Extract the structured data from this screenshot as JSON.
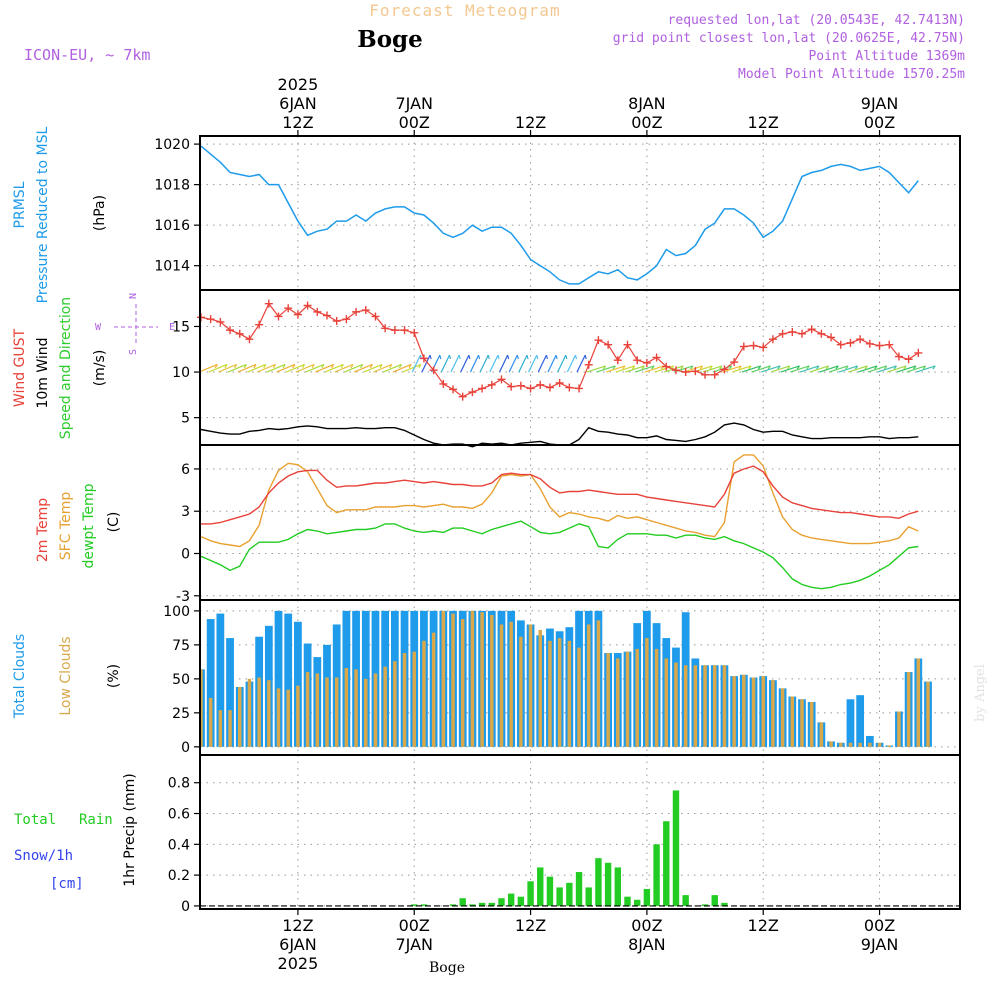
{
  "header": {
    "product": "Forecast Meteogram",
    "location": "Boge",
    "model": "ICON-EU, ~ 7km",
    "requested": "requested lon,lat (20.0543E, 42.7413N)",
    "grid_point": "grid point closest lon,lat (20.0625E, 42.75N)",
    "point_altitude": "Point Altitude 1369m",
    "model_altitude": "Model Point Altitude 1570.25m",
    "footer_location": "Boge",
    "watermark": "by Angel"
  },
  "colors": {
    "pressure": "#1e9bea",
    "gust": "#e8423a",
    "wind": "#000000",
    "dir_label": "#2ecc2e",
    "temp": "#e8423a",
    "sfc": "#e8a030",
    "dewpt": "#22cc22",
    "total_cloud": "#1e9bea",
    "low_cloud": "#d8a84a",
    "rain": "#22cc22",
    "snow": "#3344ee",
    "header_purple": "#b060e0",
    "header_orange": "#f3c890"
  },
  "chart_data": [
    {
      "id": "time_axis",
      "type": "line",
      "x_unit": "hours from 2025-01-06 00Z",
      "xlim": [
        1.9,
        80.3
      ],
      "ticks": [
        {
          "x": 12,
          "top": [
            "2025",
            "6JAN",
            "12Z"
          ],
          "bottom": [
            "12Z",
            "6JAN",
            "2025"
          ]
        },
        {
          "x": 24,
          "top": [
            "7JAN",
            "00Z"
          ],
          "bottom": [
            "00Z",
            "7JAN"
          ]
        },
        {
          "x": 36,
          "top": [
            "12Z"
          ],
          "bottom": [
            "12Z"
          ]
        },
        {
          "x": 48,
          "top": [
            "8JAN",
            "00Z"
          ],
          "bottom": [
            "00Z",
            "8JAN"
          ]
        },
        {
          "x": 60,
          "top": [
            "12Z"
          ],
          "bottom": [
            "12Z"
          ]
        },
        {
          "x": 72,
          "top": [
            "9JAN",
            "00Z"
          ],
          "bottom": [
            "00Z",
            "9JAN"
          ]
        }
      ]
    },
    {
      "id": "pressure",
      "type": "line",
      "title": "PRMSL Pressure Reduced to MSL",
      "label1": "PRMSL",
      "label2": "Pressure Reduced to MSL",
      "unit": "(hPa)",
      "ylim": [
        1012.8,
        1020.4
      ],
      "yticks": [
        1014,
        1016,
        1018,
        1020
      ],
      "x_start": 2,
      "x_step": 1,
      "values": [
        1019.9,
        1019.5,
        1019.1,
        1018.6,
        1018.5,
        1018.4,
        1018.5,
        1018.0,
        1018.0,
        1017.1,
        1016.2,
        1015.5,
        1015.7,
        1015.8,
        1016.2,
        1016.2,
        1016.5,
        1016.2,
        1016.6,
        1016.8,
        1016.9,
        1016.9,
        1016.6,
        1016.5,
        1016.1,
        1015.6,
        1015.4,
        1015.6,
        1016.0,
        1015.7,
        1015.9,
        1015.9,
        1015.6,
        1015.0,
        1014.3,
        1014.0,
        1013.7,
        1013.3,
        1013.1,
        1013.1,
        1013.4,
        1013.7,
        1013.6,
        1013.8,
        1013.4,
        1013.3,
        1013.6,
        1014.0,
        1014.8,
        1014.5,
        1014.6,
        1015.0,
        1015.8,
        1016.1,
        1016.8,
        1016.8,
        1016.5,
        1016.1,
        1015.4,
        1015.7,
        1016.2,
        1017.3,
        1018.4,
        1018.6,
        1018.7,
        1018.9,
        1019.0,
        1018.9,
        1018.7,
        1018.8,
        1018.9,
        1018.6,
        1018.1,
        1017.6,
        1018.2
      ]
    },
    {
      "id": "wind",
      "type": "line",
      "title": "Wind GUST / 10m Wind Speed and Direction",
      "label_gust": "Wind GUST",
      "label_wind": "10m Wind",
      "label_dir": "Speed and Direction",
      "unit": "(m/s)",
      "compass": {
        "n": "N",
        "s": "S",
        "w": "W",
        "e": "E"
      },
      "ylim": [
        2.0,
        19.0
      ],
      "yticks": [
        5,
        10,
        15
      ],
      "x_start": 2,
      "x_step": 1,
      "series": [
        {
          "name": "Wind GUST",
          "values": [
            16.0,
            15.8,
            15.5,
            14.6,
            14.2,
            13.6,
            15.2,
            17.5,
            16.1,
            17.0,
            16.3,
            17.3,
            16.6,
            16.2,
            15.6,
            15.8,
            16.6,
            16.8,
            16.1,
            14.8,
            14.6,
            14.6,
            14.3,
            11.5,
            10.2,
            8.7,
            8.1,
            7.3,
            7.8,
            8.2,
            8.6,
            9.2,
            8.4,
            8.5,
            8.2,
            8.6,
            8.3,
            8.8,
            8.3,
            8.2,
            10.8,
            13.5,
            13.0,
            11.3,
            13.0,
            11.3,
            11.0,
            11.6,
            10.6,
            10.2,
            10.0,
            10.1,
            9.7,
            9.7,
            10.3,
            11.1,
            12.8,
            12.9,
            12.7,
            13.6,
            14.2,
            14.4,
            14.2,
            14.7,
            14.2,
            13.8,
            13.0,
            13.2,
            13.6,
            13.1,
            12.9,
            13.0,
            11.7,
            11.4,
            12.1
          ]
        },
        {
          "name": "10m Wind",
          "values": [
            3.7,
            3.5,
            3.3,
            3.2,
            3.2,
            3.5,
            3.6,
            3.8,
            3.7,
            3.8,
            4.0,
            4.1,
            4.0,
            3.8,
            3.8,
            3.8,
            3.9,
            3.8,
            3.8,
            3.9,
            3.9,
            3.6,
            3.1,
            2.6,
            2.2,
            2.0,
            2.1,
            2.1,
            1.8,
            2.2,
            2.1,
            2.2,
            2.0,
            2.2,
            2.3,
            2.4,
            2.1,
            2.0,
            2.0,
            2.6,
            3.9,
            3.5,
            3.4,
            3.2,
            3.1,
            2.8,
            2.8,
            3.0,
            2.6,
            2.5,
            2.4,
            2.6,
            2.9,
            3.4,
            4.2,
            4.4,
            4.2,
            3.7,
            3.4,
            3.5,
            3.5,
            3.1,
            2.9,
            2.7,
            2.7,
            2.8,
            2.8,
            2.8,
            2.8,
            2.9,
            2.9,
            2.7,
            2.8,
            2.8,
            2.9
          ]
        }
      ]
    },
    {
      "id": "temperature",
      "type": "line",
      "title": "2m Temp / SFC Temp / dewpt Temp",
      "label_t2m": "2m Temp",
      "label_sfc": "SFC Temp",
      "label_dew": "dewpt Temp",
      "unit": "(C)",
      "ylim": [
        -3.3,
        7.7
      ],
      "yticks": [
        -3,
        0,
        3,
        6
      ],
      "x_start": 2,
      "x_step": 1,
      "series": [
        {
          "name": "2m Temp",
          "values": [
            2.1,
            2.1,
            2.2,
            2.4,
            2.6,
            2.8,
            3.3,
            4.3,
            5.0,
            5.5,
            5.8,
            5.9,
            5.9,
            5.2,
            4.7,
            4.8,
            4.8,
            4.9,
            5.0,
            5.0,
            5.1,
            5.2,
            5.1,
            5.0,
            5.1,
            5.0,
            4.9,
            4.9,
            4.8,
            4.8,
            5.0,
            5.6,
            5.7,
            5.6,
            5.6,
            5.3,
            4.7,
            4.3,
            4.4,
            4.4,
            4.5,
            4.4,
            4.3,
            4.2,
            4.2,
            4.2,
            4.0,
            3.9,
            3.8,
            3.7,
            3.6,
            3.5,
            3.4,
            3.3,
            4.2,
            5.7,
            6.0,
            6.2,
            5.8,
            4.8,
            4.0,
            3.6,
            3.4,
            3.2,
            3.1,
            3.0,
            2.9,
            2.9,
            2.8,
            2.7,
            2.6,
            2.6,
            2.5,
            2.8,
            3.0
          ]
        },
        {
          "name": "SFC Temp",
          "values": [
            1.2,
            0.9,
            0.7,
            0.6,
            0.5,
            0.9,
            2.0,
            4.5,
            5.9,
            6.4,
            6.3,
            5.8,
            4.6,
            3.4,
            2.9,
            3.1,
            3.1,
            3.1,
            3.3,
            3.3,
            3.3,
            3.4,
            3.4,
            3.3,
            3.4,
            3.5,
            3.3,
            3.3,
            3.2,
            3.5,
            4.3,
            5.5,
            5.6,
            5.5,
            5.6,
            4.6,
            3.3,
            2.6,
            2.9,
            2.8,
            2.6,
            2.5,
            2.3,
            2.7,
            2.5,
            2.6,
            2.4,
            2.2,
            2.0,
            1.8,
            1.6,
            1.5,
            1.3,
            1.2,
            2.2,
            6.5,
            7.0,
            7.0,
            6.2,
            4.3,
            2.6,
            1.7,
            1.3,
            1.1,
            1.0,
            0.9,
            0.8,
            0.7,
            0.7,
            0.7,
            0.8,
            0.9,
            1.1,
            1.9,
            1.6
          ]
        },
        {
          "name": "dewpt Temp",
          "values": [
            -0.2,
            -0.5,
            -0.8,
            -1.2,
            -0.9,
            0.3,
            0.8,
            0.8,
            0.8,
            1.0,
            1.4,
            1.7,
            1.6,
            1.4,
            1.5,
            1.6,
            1.7,
            1.7,
            1.8,
            2.1,
            2.1,
            1.8,
            1.6,
            1.5,
            1.6,
            1.5,
            1.8,
            1.8,
            1.6,
            1.4,
            1.7,
            1.9,
            2.1,
            2.3,
            1.9,
            1.5,
            1.4,
            1.5,
            1.8,
            2.1,
            1.9,
            0.5,
            0.4,
            1.0,
            1.4,
            1.4,
            1.4,
            1.3,
            1.3,
            1.1,
            1.3,
            1.3,
            1.1,
            1.0,
            1.2,
            0.9,
            0.7,
            0.4,
            0.1,
            -0.3,
            -1.0,
            -1.8,
            -2.2,
            -2.4,
            -2.5,
            -2.4,
            -2.2,
            -2.1,
            -1.9,
            -1.6,
            -1.2,
            -0.8,
            -0.2,
            0.4,
            0.5
          ]
        }
      ]
    },
    {
      "id": "clouds",
      "type": "bar",
      "title": "Total Clouds / Low Clouds",
      "label_total": "Total Clouds",
      "label_low": "Low Clouds",
      "unit": "(%)",
      "ylim": [
        -6,
        108
      ],
      "yticks": [
        0,
        25,
        50,
        75,
        100
      ],
      "x_start": 2,
      "x_step": 1,
      "series": [
        {
          "name": "Total Clouds",
          "values": [
            57,
            94,
            98,
            80,
            44,
            48,
            81,
            89,
            100,
            98,
            92,
            76,
            66,
            75,
            90,
            100,
            100,
            100,
            100,
            100,
            100,
            100,
            100,
            100,
            100,
            100,
            100,
            100,
            100,
            100,
            100,
            100,
            100,
            93,
            90,
            82,
            87,
            85,
            88,
            100,
            100,
            100,
            69,
            69,
            70,
            91,
            100,
            91,
            80,
            73,
            99,
            65,
            60,
            60,
            60,
            52,
            53,
            51,
            52,
            49,
            43,
            37,
            35,
            33,
            18,
            4,
            3,
            35,
            38,
            8,
            3,
            1,
            26,
            55,
            65,
            48
          ]
        },
        {
          "name": "Low Clouds",
          "values": [
            57,
            36,
            27,
            27,
            44,
            50,
            51,
            49,
            43,
            42,
            45,
            55,
            54,
            51,
            51,
            58,
            57,
            50,
            54,
            59,
            63,
            69,
            70,
            78,
            84,
            100,
            98,
            94,
            100,
            99,
            97,
            90,
            92,
            81,
            90,
            86,
            78,
            80,
            78,
            73,
            90,
            93,
            69,
            65,
            70,
            72,
            80,
            72,
            65,
            62,
            60,
            60,
            60,
            60,
            60,
            52,
            53,
            51,
            52,
            49,
            43,
            37,
            35,
            33,
            18,
            4,
            3,
            3,
            3,
            3,
            3,
            1,
            26,
            55,
            65,
            48
          ]
        }
      ]
    },
    {
      "id": "precip",
      "type": "bar",
      "title": "1hr Precip (mm)",
      "label_total": "Total",
      "label_rain": "Rain",
      "label_snow": "Snow/1h",
      "label_cm": "[cm]",
      "unit": "1hr Precip (mm)",
      "ylim": [
        -0.02,
        0.98
      ],
      "yticks": [
        0,
        0.2,
        0.4,
        0.6,
        0.8
      ],
      "x_start": 2,
      "x_step": 1,
      "series": [
        {
          "name": "Total Rain",
          "values": [
            0,
            0,
            0,
            0,
            0,
            0,
            0,
            0,
            0,
            0,
            0,
            0,
            0,
            0,
            0,
            0,
            0,
            0,
            0,
            0,
            0,
            0,
            0.01,
            0.01,
            0,
            0,
            0.01,
            0.05,
            0.01,
            0.02,
            0.02,
            0.05,
            0.08,
            0.06,
            0.16,
            0.25,
            0.19,
            0.12,
            0.15,
            0.22,
            0.12,
            0.31,
            0.28,
            0.25,
            0.06,
            0.04,
            0.11,
            0.4,
            0.55,
            0.75,
            0.07,
            0,
            0.01,
            0.07,
            0.02,
            0,
            0,
            0,
            0,
            0,
            0,
            0,
            0,
            0,
            0,
            0,
            0,
            0,
            0,
            0,
            0,
            0,
            0,
            0,
            0
          ]
        }
      ]
    }
  ]
}
